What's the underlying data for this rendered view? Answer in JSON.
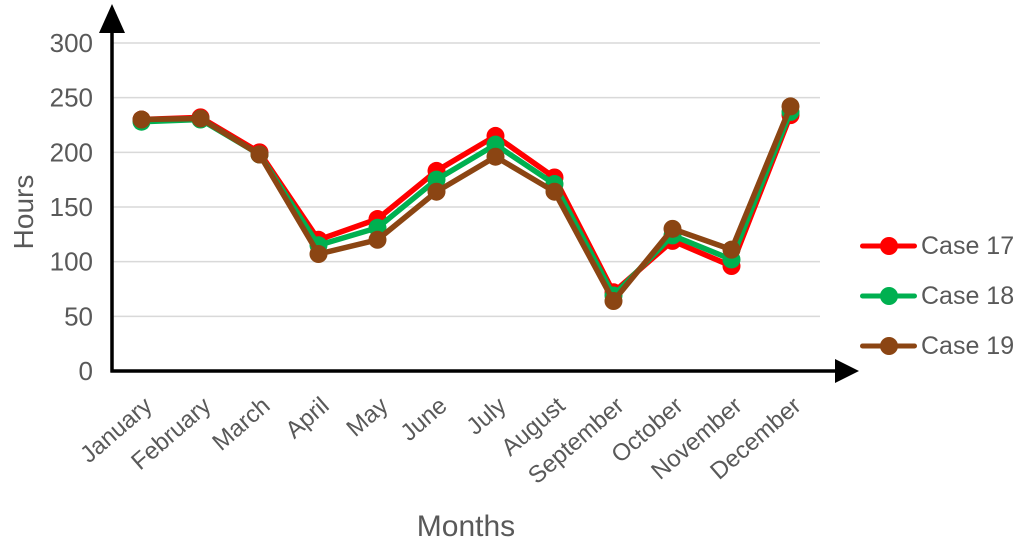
{
  "chart_data": {
    "type": "line",
    "title": "",
    "xlabel": "Months",
    "ylabel": "Hours",
    "categories": [
      "January",
      "February",
      "March",
      "April",
      "May",
      "June",
      "July",
      "August",
      "September",
      "October",
      "November",
      "December"
    ],
    "series": [
      {
        "name": "Case 17",
        "color": "#FF0000",
        "values": [
          230,
          232,
          200,
          120,
          139,
          183,
          215,
          177,
          72,
          119,
          96,
          234
        ]
      },
      {
        "name": "Case 18",
        "color": "#00B050",
        "values": [
          228,
          230,
          198,
          115,
          131,
          175,
          207,
          171,
          69,
          124,
          102,
          237
        ]
      },
      {
        "name": "Case 19",
        "color": "#8B4513",
        "values": [
          230,
          231,
          198,
          107,
          120,
          164,
          196,
          164,
          64,
          130,
          111,
          242
        ]
      }
    ],
    "ylim": [
      0,
      300
    ],
    "yticks": [
      0,
      50,
      100,
      150,
      200,
      250,
      300
    ],
    "grid": true,
    "legend_position": "right",
    "x_tick_rotation_deg": -41
  },
  "style_colors": {
    "axis_line": "#000000",
    "gridline": "#D9D9D9",
    "label_text": "#595959",
    "background": "#FFFFFF"
  }
}
